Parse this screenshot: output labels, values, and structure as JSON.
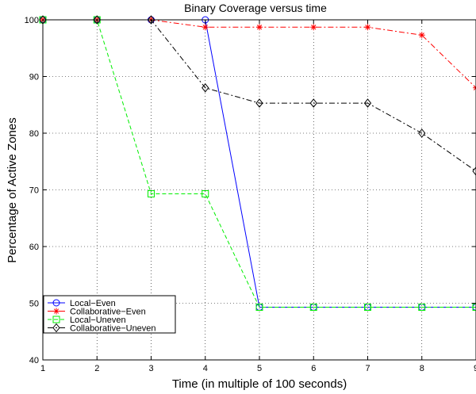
{
  "chart_data": {
    "type": "line",
    "title": "Binary Coverage versus time",
    "xlabel": "Time (in multiple of 100 seconds)",
    "ylabel": "Percentage of Active Zones",
    "xlim": [
      1,
      9
    ],
    "ylim": [
      40,
      100
    ],
    "xticks": [
      "1",
      "2",
      "3",
      "4",
      "5",
      "6",
      "7",
      "8",
      "9"
    ],
    "yticks": [
      "40",
      "50",
      "60",
      "70",
      "80",
      "90",
      "100"
    ],
    "grid": true,
    "legend_position": "lower-left",
    "series": [
      {
        "name": "Local−Even",
        "color": "#0000ff",
        "line": "solid",
        "marker": "circle",
        "x": [
          1,
          2,
          3,
          4,
          5,
          6,
          7,
          8,
          9
        ],
        "y": [
          100,
          100,
          100,
          100,
          49.3,
          49.3,
          49.3,
          49.3,
          49.3
        ]
      },
      {
        "name": "Collaborative−Even",
        "color": "#ff0000",
        "line": "dashdot",
        "marker": "star",
        "x": [
          1,
          2,
          3,
          4,
          5,
          6,
          7,
          8,
          9
        ],
        "y": [
          100,
          100,
          100,
          98.7,
          98.7,
          98.7,
          98.7,
          97.3,
          88
        ]
      },
      {
        "name": "Local−Uneven",
        "color": "#00ee00",
        "line": "dashed",
        "marker": "square",
        "x": [
          1,
          2,
          3,
          4,
          5,
          6,
          7,
          8,
          9
        ],
        "y": [
          100,
          100,
          69.3,
          69.3,
          49.3,
          49.3,
          49.3,
          49.3,
          49.3
        ]
      },
      {
        "name": "Collaborative−Uneven",
        "color": "#000000",
        "line": "dashdot",
        "marker": "diamond",
        "x": [
          1,
          2,
          3,
          4,
          5,
          6,
          7,
          8,
          9
        ],
        "y": [
          100,
          100,
          100,
          88,
          85.3,
          85.3,
          85.3,
          80,
          73.3
        ]
      }
    ]
  }
}
